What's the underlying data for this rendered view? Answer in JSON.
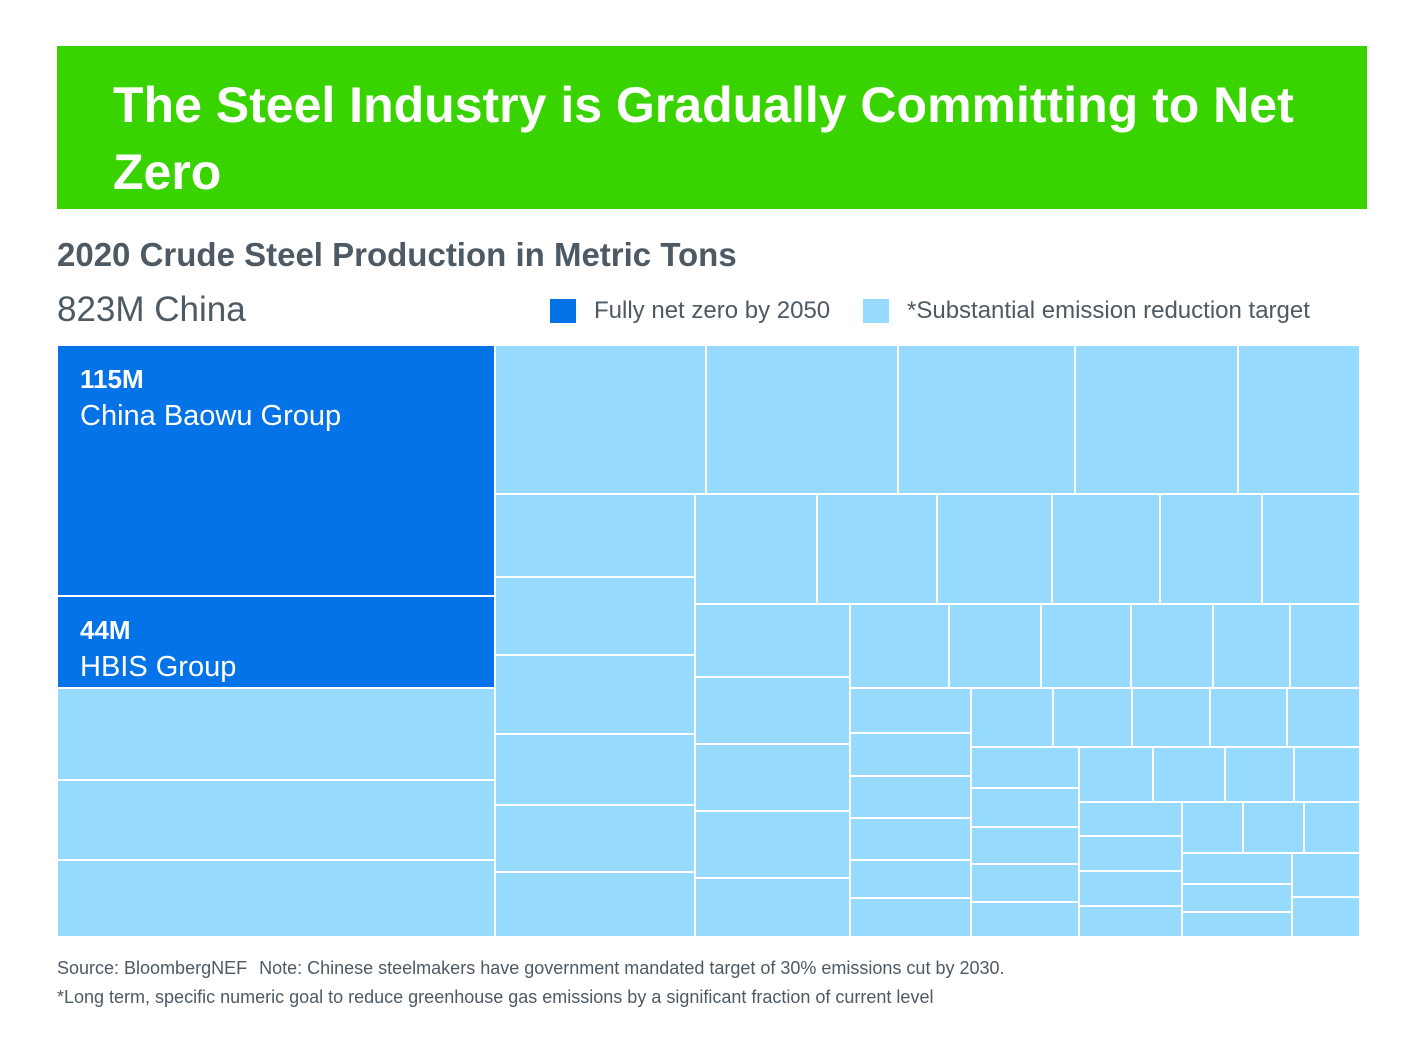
{
  "header": {
    "title": "The Steel Industry is Gradually Committing to Net Zero"
  },
  "colors": {
    "banner": "#39d300",
    "fully_net_zero": "#0473e8",
    "substantial_target": "#97daff",
    "text": "#4d5963"
  },
  "chart_data": {
    "type": "treemap",
    "title": "2020 Crude Steel Production in Metric Tons",
    "group": {
      "name": "China",
      "value_label": "823M",
      "label": "823M China"
    },
    "legend": [
      {
        "label": "Fully net zero by 2050",
        "category": "fully_net_zero",
        "color": "#0473e8"
      },
      {
        "label": "*Substantial emission reduction target",
        "category": "substantial_target",
        "color": "#97daff"
      }
    ],
    "labeled_items": [
      {
        "name": "China Baowu Group",
        "value": 115,
        "value_label": "115M",
        "category": "fully_net_zero"
      },
      {
        "name": "HBIS Group",
        "value": 44,
        "value_label": "44M",
        "category": "fully_net_zero"
      }
    ],
    "unlabeled_item_category": "substantial_target"
  },
  "footer": {
    "source": "Source: BloombergNEF",
    "note": "Note: Chinese steelmakers have government mandated target of 30% emissions cut by 2030.",
    "footnote": "*Long term, specific numeric goal to reduce greenhouse gas emissions by a significant fraction of current level"
  }
}
